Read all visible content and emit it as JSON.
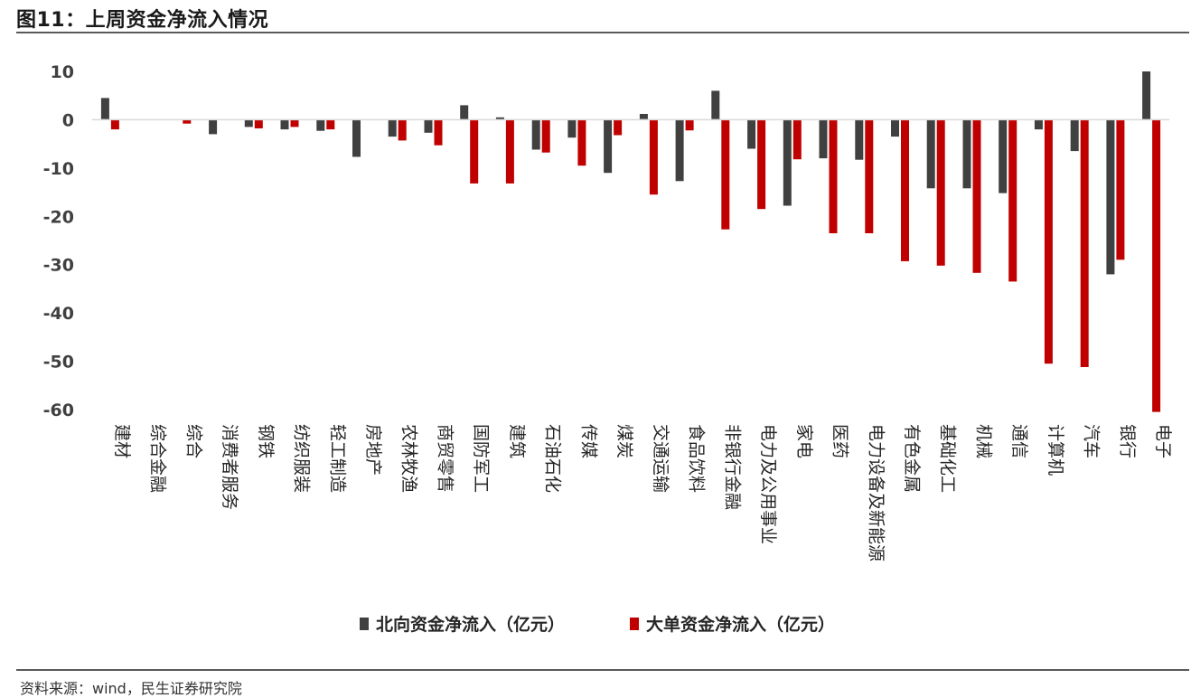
{
  "header": {
    "title": "图11：上周资金净流入情况"
  },
  "footer": {
    "source": "资料来源：wind，民生证券研究院"
  },
  "chart_data": {
    "type": "bar",
    "title": "图11：上周资金净流入情况",
    "xlabel": "",
    "ylabel": "",
    "ylim": [
      -60,
      10
    ],
    "yticks": [
      10,
      0,
      -10,
      -20,
      -30,
      -40,
      -50,
      -60
    ],
    "grid": false,
    "legend": "bottom",
    "categories": [
      "建材",
      "综合金融",
      "综合",
      "消费者服务",
      "钢铁",
      "纺织服装",
      "轻工制造",
      "房地产",
      "农林牧渔",
      "商贸零售",
      "国防军工",
      "建筑",
      "石油石化",
      "传媒",
      "煤炭",
      "交通运输",
      "食品饮料",
      "非银行金融",
      "电力及公用事业",
      "家电",
      "医药",
      "电力设备及新能源",
      "有色金属",
      "基础化工",
      "机械",
      "通信",
      "计算机",
      "汽车",
      "银行",
      "电子"
    ],
    "series": [
      {
        "name": "北向资金净流入（亿元）",
        "color": "#404040",
        "values": [
          4.5,
          0,
          0,
          -3.0,
          -1.5,
          -2.0,
          -2.3,
          -7.7,
          -3.5,
          -2.7,
          3.0,
          0.5,
          -6.2,
          -3.7,
          -11.0,
          1.2,
          -12.7,
          6.0,
          -6.0,
          -17.8,
          -8.0,
          -8.3,
          -3.5,
          -14.2,
          -14.2,
          -15.2,
          -2.0,
          -6.5,
          -32.0,
          10.0
        ]
      },
      {
        "name": "大单资金净流入（亿元）",
        "color": "#c00000",
        "values": [
          -2.0,
          0,
          -0.8,
          0,
          -1.8,
          -1.5,
          -2.0,
          0,
          -4.3,
          -5.3,
          -13.2,
          -13.2,
          -6.8,
          -9.5,
          -3.2,
          -15.5,
          -2.2,
          -22.7,
          -18.5,
          -8.2,
          -23.5,
          -23.5,
          -29.3,
          -30.2,
          -31.7,
          -33.5,
          -50.5,
          -51.2,
          -29.0,
          -60.5
        ]
      }
    ]
  }
}
